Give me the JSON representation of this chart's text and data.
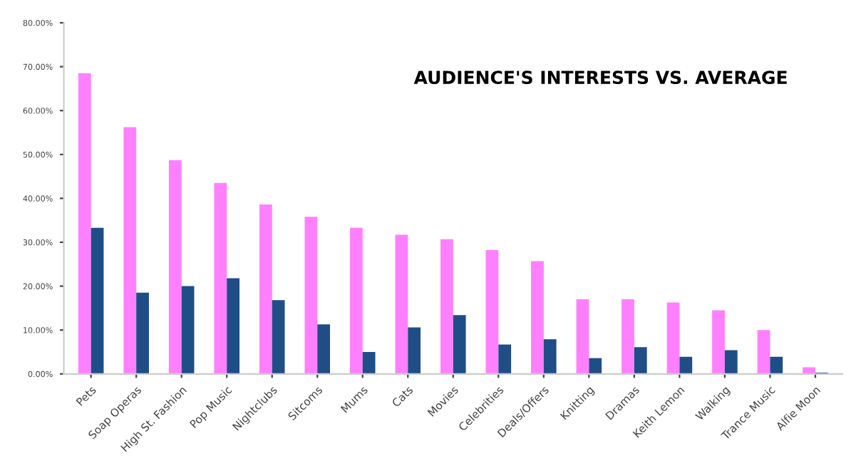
{
  "chart_data": {
    "type": "bar",
    "title": "AUDIENCE'S INTERESTS VS. AVERAGE",
    "categories": [
      "Pets",
      "Soap Operas",
      "High St. Fashion",
      "Pop Music",
      "Nightclubs",
      "Sitcoms",
      "Mums",
      "Cats",
      "Movies",
      "Celebrities",
      "Deals/Offers",
      "Knitting",
      "Dramas",
      "Keith Lemon",
      "Walking",
      "Trance Music",
      "Alfie Moon"
    ],
    "series": [
      {
        "color": "#ff80ff",
        "values": [
          68.5,
          56.2,
          48.7,
          43.5,
          38.6,
          35.8,
          33.3,
          31.7,
          30.7,
          28.2,
          25.7,
          17.0,
          17.0,
          16.3,
          14.5,
          10.0,
          1.5
        ]
      },
      {
        "color": "#1f4e87",
        "values": [
          33.3,
          18.5,
          20.0,
          21.8,
          16.8,
          11.3,
          5.0,
          10.6,
          13.4,
          6.7,
          7.9,
          3.6,
          6.1,
          3.9,
          5.4,
          3.9,
          0.3
        ]
      }
    ],
    "ylim": [
      0,
      80
    ],
    "yticks": [
      {
        "value": 0,
        "label": "0.00%"
      },
      {
        "value": 10,
        "label": "10.00%"
      },
      {
        "value": 20,
        "label": "20.00%"
      },
      {
        "value": 30,
        "label": "30.00%"
      },
      {
        "value": 40,
        "label": "40.00%"
      },
      {
        "value": 50,
        "label": "50.00%"
      },
      {
        "value": 60,
        "label": "60.00%"
      },
      {
        "value": 70,
        "label": "70.00%"
      },
      {
        "value": 80,
        "label": "80.00%"
      }
    ],
    "grid": false,
    "legend": false
  }
}
